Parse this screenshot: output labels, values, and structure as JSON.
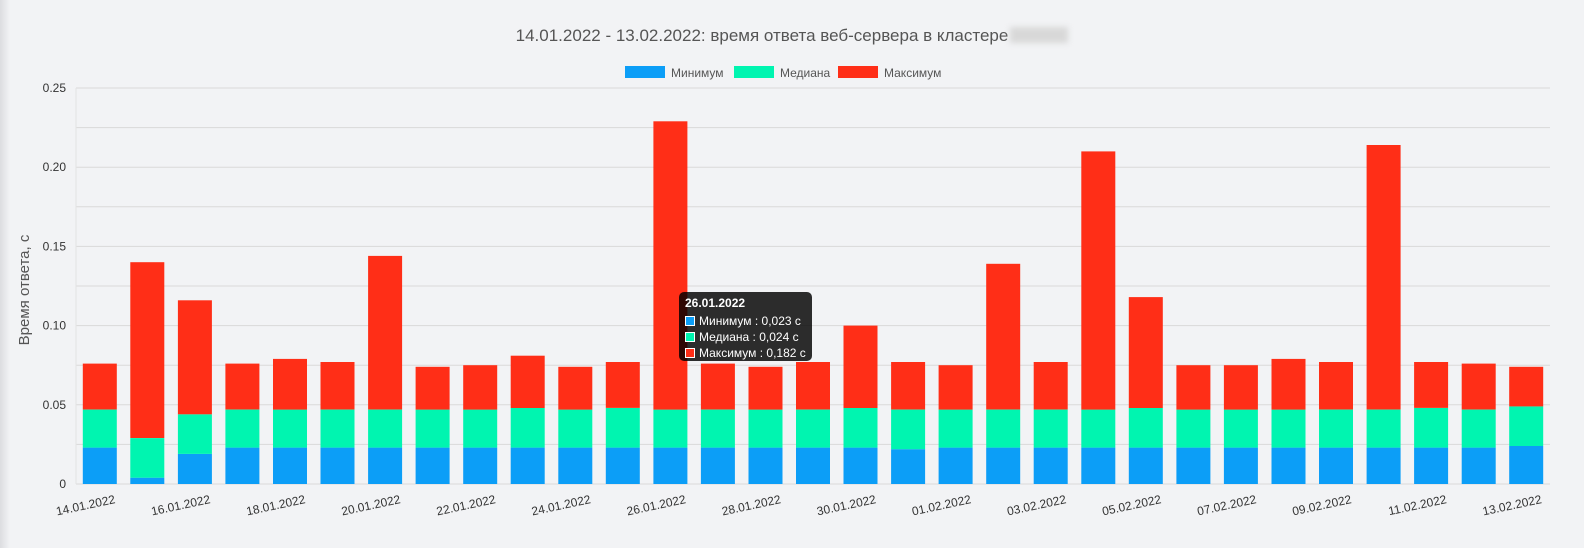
{
  "title": "14.01.2022 - 13.02.2022: время ответа веб-сервера в кластере",
  "tooltip": {
    "title": "26.01.2022",
    "rows": [
      {
        "text": "Минимум : 0,023 с"
      },
      {
        "text": "Медиана : 0,024 с"
      },
      {
        "text": "Максимум : 0,182 с"
      }
    ]
  },
  "chart_data": {
    "type": "bar",
    "stacked": true,
    "title": "14.01.2022 - 13.02.2022: время ответа веб-сервера в кластере",
    "ylabel": "Время ответа, с",
    "xlabel": "",
    "ylim": [
      0,
      0.25
    ],
    "yticks": [
      "0",
      "0.05",
      "0.10",
      "0.15",
      "0.20",
      "0.25"
    ],
    "grid": true,
    "legend_position": "top",
    "categories": [
      "14.01.2022",
      "15.01.2022",
      "16.01.2022",
      "17.01.2022",
      "18.01.2022",
      "19.01.2022",
      "20.01.2022",
      "21.01.2022",
      "22.01.2022",
      "23.01.2022",
      "24.01.2022",
      "25.01.2022",
      "26.01.2022",
      "27.01.2022",
      "28.01.2022",
      "29.01.2022",
      "30.01.2022",
      "31.01.2022",
      "01.02.2022",
      "02.02.2022",
      "03.02.2022",
      "04.02.2022",
      "05.02.2022",
      "06.02.2022",
      "07.02.2022",
      "08.02.2022",
      "09.02.2022",
      "10.02.2022",
      "11.02.2022",
      "12.02.2022",
      "13.02.2022"
    ],
    "shown_tick_labels": [
      "14.01.2022",
      "16.01.2022",
      "18.01.2022",
      "20.01.2022",
      "22.01.2022",
      "24.01.2022",
      "26.01.2022",
      "28.01.2022",
      "30.01.2022",
      "01.02.2022",
      "03.02.2022",
      "05.02.2022",
      "07.02.2022",
      "09.02.2022",
      "11.02.2022",
      "13.02.2022"
    ],
    "series": [
      {
        "name": "Минимум",
        "color": "#0c9ef7",
        "values": [
          0.023,
          0.004,
          0.019,
          0.023,
          0.023,
          0.023,
          0.023,
          0.023,
          0.023,
          0.023,
          0.023,
          0.023,
          0.023,
          0.023,
          0.023,
          0.023,
          0.023,
          0.022,
          0.023,
          0.023,
          0.023,
          0.023,
          0.023,
          0.023,
          0.023,
          0.023,
          0.023,
          0.023,
          0.023,
          0.023,
          0.024
        ]
      },
      {
        "name": "Медиана",
        "color": "#00f5b0",
        "values": [
          0.024,
          0.025,
          0.025,
          0.024,
          0.024,
          0.024,
          0.024,
          0.024,
          0.024,
          0.025,
          0.024,
          0.025,
          0.024,
          0.024,
          0.024,
          0.024,
          0.025,
          0.025,
          0.024,
          0.024,
          0.024,
          0.024,
          0.025,
          0.024,
          0.024,
          0.024,
          0.024,
          0.024,
          0.025,
          0.024,
          0.025
        ]
      },
      {
        "name": "Максимум",
        "color": "#ff2e17",
        "values": [
          0.029,
          0.111,
          0.072,
          0.029,
          0.032,
          0.03,
          0.097,
          0.027,
          0.028,
          0.033,
          0.027,
          0.029,
          0.182,
          0.029,
          0.027,
          0.03,
          0.052,
          0.03,
          0.028,
          0.092,
          0.03,
          0.163,
          0.07,
          0.028,
          0.028,
          0.032,
          0.03,
          0.167,
          0.029,
          0.029,
          0.025
        ]
      }
    ]
  }
}
